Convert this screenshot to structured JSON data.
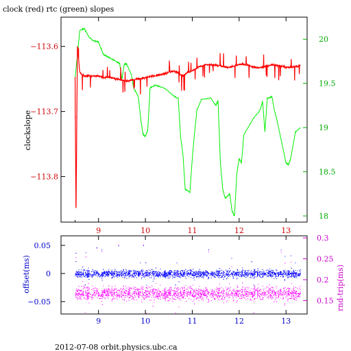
{
  "page": {
    "title": "clock (red) rtc (green) slopes",
    "footer": "2012-07-08  orbit.physics.ubc.ca"
  },
  "colors": {
    "clock": "#ff0000",
    "rtc": "#00ee00",
    "offset": "#0000ff",
    "rndtrip": "#ff00ff",
    "red_axis": "#cc0000",
    "green_axis": "#00aa00",
    "blue_axis": "#0000cc",
    "magenta_axis": "#cc00cc"
  },
  "chart_data": [
    {
      "type": "line",
      "title": "clock (red) rtc (green) slopes",
      "xlabel": "",
      "ylabel": "clockslope",
      "y2label": "",
      "xlim": [
        8.2,
        13.45
      ],
      "ylim": [
        -113.87,
        -113.555
      ],
      "y2lim": [
        17.93,
        20.25
      ],
      "xticks": [
        9,
        10,
        11,
        12,
        13
      ],
      "yticks": [
        -113.6,
        -113.7,
        -113.8
      ],
      "y2ticks": [
        20,
        19.5,
        19,
        18.5,
        18
      ],
      "series": [
        {
          "axis": "left",
          "x": [
            8.5,
            8.52,
            8.55,
            8.6,
            8.7,
            8.8,
            8.9,
            9.0,
            9.1,
            9.2,
            9.3,
            9.4,
            9.5,
            9.6,
            9.7,
            9.8,
            9.9,
            10.0,
            10.1,
            10.2,
            10.3,
            10.4,
            10.5,
            10.6,
            10.7,
            10.8,
            10.9,
            11.0,
            11.1,
            11.2,
            11.3,
            11.4,
            11.5,
            11.6,
            11.7,
            11.8,
            11.9,
            12.0,
            12.1,
            12.2,
            12.3,
            12.4,
            12.5,
            12.6,
            12.7,
            12.8,
            12.9,
            13.0,
            13.1,
            13.2,
            13.3
          ],
          "values": [
            -113.647,
            -113.86,
            -113.6,
            -113.64,
            -113.646,
            -113.645,
            -113.646,
            -113.645,
            -113.648,
            -113.647,
            -113.649,
            -113.65,
            -113.652,
            -113.653,
            -113.652,
            -113.65,
            -113.65,
            -113.648,
            -113.646,
            -113.645,
            -113.644,
            -113.642,
            -113.64,
            -113.638,
            -113.64,
            -113.645,
            -113.64,
            -113.637,
            -113.633,
            -113.63,
            -113.628,
            -113.628,
            -113.629,
            -113.63,
            -113.632,
            -113.632,
            -113.63,
            -113.628,
            -113.627,
            -113.629,
            -113.632,
            -113.633,
            -113.632,
            -113.63,
            -113.628,
            -113.629,
            -113.63,
            -113.632,
            -113.632,
            -113.631,
            -113.63
          ]
        },
        {
          "axis": "right",
          "x": [
            8.5,
            8.6,
            8.7,
            8.8,
            8.9,
            9.0,
            9.1,
            9.2,
            9.3,
            9.4,
            9.45,
            9.5,
            9.55,
            9.6,
            9.7,
            9.75,
            9.85,
            9.9,
            9.95,
            10.0,
            10.05,
            10.1,
            10.2,
            10.4,
            10.6,
            10.7,
            10.75,
            10.8,
            10.85,
            10.95,
            11.0,
            11.05,
            11.1,
            11.2,
            11.4,
            11.5,
            11.55,
            11.6,
            11.65,
            11.7,
            11.8,
            11.85,
            11.9,
            11.95,
            12.0,
            12.05,
            12.1,
            12.3,
            12.45,
            12.5,
            12.55,
            12.6,
            12.7,
            12.75,
            12.8,
            12.9,
            13.0,
            13.05,
            13.1,
            13.2,
            13.3
          ],
          "values": [
            19.55,
            20.1,
            20.12,
            20.02,
            19.98,
            19.97,
            19.83,
            19.8,
            19.77,
            19.74,
            19.73,
            19.55,
            19.72,
            19.72,
            19.6,
            19.45,
            19.35,
            19.1,
            18.92,
            18.9,
            18.97,
            19.45,
            19.48,
            19.45,
            19.36,
            19.33,
            18.9,
            18.7,
            18.3,
            18.27,
            18.65,
            18.95,
            19.2,
            19.32,
            19.33,
            19.25,
            19.3,
            18.6,
            18.3,
            18.2,
            18.25,
            18.05,
            18.0,
            18.48,
            18.65,
            18.6,
            18.92,
            19.1,
            19.2,
            19.3,
            18.95,
            19.33,
            19.35,
            19.2,
            19.1,
            18.85,
            18.6,
            18.58,
            18.65,
            18.95,
            19.0
          ]
        }
      ]
    },
    {
      "type": "scatter",
      "xlabel": "",
      "ylabel": "offset(ms)",
      "y2label": "rnd-trip(ms)",
      "xlim": [
        8.2,
        13.45
      ],
      "ylim": [
        -0.072,
        0.067
      ],
      "y2lim": [
        0.118,
        0.305
      ],
      "xticks": [
        9,
        10,
        11,
        12,
        13
      ],
      "yticks": [
        0.05,
        0,
        -0.05
      ],
      "y2ticks": [
        0.3,
        0.25,
        0.2,
        0.15
      ],
      "series": [
        {
          "axis": "left",
          "x_range": [
            8.5,
            13.3
          ],
          "center": 0.0,
          "spread": 0.012
        },
        {
          "axis": "right",
          "x_range": [
            8.5,
            13.3
          ],
          "center": 0.168,
          "spread": 0.028
        }
      ]
    }
  ]
}
